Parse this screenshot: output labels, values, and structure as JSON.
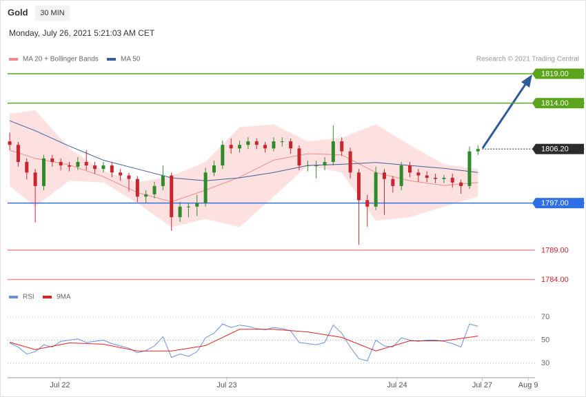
{
  "chart_data": {
    "type": "candlestick",
    "title": "Gold",
    "timeframe": "30 MIN",
    "subtitle": "Monday, July 26, 2021 5:21:03 AM CET",
    "credit": "Research © 2021 Trading Central",
    "xlim": [
      -0.25,
      61.8
    ],
    "xticks": [
      {
        "value": 5.9,
        "label": "Jul 22"
      },
      {
        "value": 25.5,
        "label": "Jul 23"
      },
      {
        "value": 45.5,
        "label": "Jul 24"
      },
      {
        "value": 55.5,
        "label": "Jul 27"
      },
      {
        "value": 60.9,
        "label": "Aug 9"
      }
    ],
    "ylim": [
      1782,
      1820.5
    ],
    "up_color": "#2f8a2a",
    "down_color": "#c8262c",
    "candles": {
      "open": [
        1807.5,
        1806.9,
        1804.0,
        1802.2,
        1799.9,
        1804.6,
        1804.0,
        1803.4,
        1803.2,
        1804.0,
        1803.4,
        1802.8,
        1803.4,
        1802.2,
        1801.7,
        1801.1,
        1798.1,
        1798.5,
        1799.9,
        1801.7,
        1794.6,
        1796.4,
        1796.4,
        1797.0,
        1802.2,
        1803.4,
        1806.9,
        1806.3,
        1806.9,
        1807.5,
        1806.9,
        1806.3,
        1807.5,
        1807.5,
        1806.3,
        1803.4,
        1803.4,
        1803.4,
        1804.0,
        1807.5,
        1805.8,
        1802.2,
        1797.5,
        1796.4,
        1802.2,
        1801.1,
        1799.9,
        1803.4,
        1802.2,
        1801.7,
        1801.3,
        1801.1,
        1801.3,
        1800.5,
        1799.9,
        1805.8
      ],
      "high": [
        1809.0,
        1807.4,
        1804.6,
        1802.8,
        1805.2,
        1805.2,
        1804.6,
        1804.0,
        1804.8,
        1806.0,
        1804.0,
        1804.0,
        1804.0,
        1802.8,
        1802.2,
        1801.6,
        1799.2,
        1800.6,
        1803.4,
        1802.2,
        1797.2,
        1797.0,
        1798.4,
        1803.0,
        1804.2,
        1807.6,
        1808.0,
        1807.6,
        1808.2,
        1808.0,
        1807.4,
        1808.2,
        1808.2,
        1808.0,
        1806.8,
        1804.2,
        1804.2,
        1804.8,
        1810.2,
        1808.2,
        1806.4,
        1802.8,
        1798.4,
        1803.2,
        1802.8,
        1801.6,
        1804.0,
        1804.0,
        1802.8,
        1802.4,
        1802.0,
        1801.8,
        1802.0,
        1801.0,
        1806.6,
        1806.8
      ],
      "low": [
        1806.0,
        1803.2,
        1801.0,
        1793.7,
        1799.2,
        1803.2,
        1802.6,
        1802.4,
        1802.6,
        1802.6,
        1802.0,
        1802.2,
        1801.4,
        1800.8,
        1799.0,
        1797.2,
        1797.0,
        1797.8,
        1799.2,
        1792.3,
        1793.8,
        1794.6,
        1794.8,
        1796.4,
        1801.6,
        1802.8,
        1805.4,
        1805.6,
        1806.2,
        1806.2,
        1805.6,
        1805.8,
        1806.6,
        1805.4,
        1802.6,
        1802.4,
        1801.2,
        1802.6,
        1803.4,
        1805.0,
        1801.2,
        1789.9,
        1793.0,
        1795.8,
        1795.0,
        1798.8,
        1799.2,
        1801.4,
        1800.6,
        1800.6,
        1800.4,
        1800.4,
        1799.6,
        1798.6,
        1799.4,
        1805.2
      ],
      "close": [
        1806.9,
        1804.0,
        1802.2,
        1799.9,
        1804.6,
        1804.0,
        1803.4,
        1803.2,
        1804.0,
        1803.4,
        1802.8,
        1803.4,
        1802.2,
        1801.7,
        1801.1,
        1798.1,
        1798.5,
        1799.9,
        1801.7,
        1794.6,
        1796.4,
        1796.4,
        1797.0,
        1802.2,
        1803.4,
        1806.9,
        1806.3,
        1806.9,
        1807.5,
        1806.9,
        1806.3,
        1807.5,
        1807.5,
        1806.3,
        1803.4,
        1803.4,
        1803.4,
        1804.0,
        1807.5,
        1805.8,
        1802.2,
        1797.5,
        1796.4,
        1802.2,
        1801.1,
        1799.9,
        1803.4,
        1802.2,
        1801.7,
        1801.3,
        1801.1,
        1801.3,
        1800.5,
        1799.9,
        1805.8,
        1806.2
      ]
    },
    "indicators": {
      "x": [
        0,
        3,
        7,
        11,
        15,
        19,
        23,
        27,
        31,
        35,
        39,
        43,
        47,
        51,
        55
      ],
      "series": [
        {
          "name": "MA 20 + Bollinger Bands",
          "color": "#f28b86",
          "band_color": "#fde1e1",
          "values": [
            1806.0,
            1804.6,
            1803.5,
            1801.5,
            1798.8,
            1797.2,
            1799.2,
            1801.4,
            1804.3,
            1805.4,
            1805.2,
            1802.2,
            1800.8,
            1800.0,
            1800.5
          ],
          "upper": [
            1812.2,
            1812.8,
            1806.3,
            1802.5,
            1800.5,
            1801.6,
            1804.0,
            1809.9,
            1810.4,
            1807.5,
            1808.1,
            1810.4,
            1806.9,
            1803.6,
            1802.8
          ],
          "lower": [
            1799.9,
            1796.4,
            1800.8,
            1800.5,
            1797.0,
            1792.9,
            1794.3,
            1792.9,
            1798.1,
            1803.4,
            1802.2,
            1794.0,
            1794.6,
            1796.4,
            1798.1
          ]
        },
        {
          "name": "MA 50",
          "color": "#3b5e9c",
          "values": [
            1811.0,
            1809.3,
            1806.7,
            1804.3,
            1802.8,
            1801.3,
            1800.8,
            1801.3,
            1802.2,
            1803.4,
            1803.6,
            1803.9,
            1803.4,
            1802.9,
            1802.2
          ]
        }
      ]
    },
    "levels": [
      {
        "value": 1819,
        "label": "1819.00",
        "color": "#5aa51b",
        "style": "tag",
        "line": "solid"
      },
      {
        "value": 1814,
        "label": "1814.00",
        "color": "#5aa51b",
        "style": "tag",
        "line": "solid"
      },
      {
        "value": 1806.2,
        "label": "1806.20",
        "color": "#2b2b2b",
        "style": "tag",
        "line": "dotted"
      },
      {
        "value": 1797,
        "label": "1797.00",
        "color": "#2f6fe6",
        "style": "tag",
        "line": "solid"
      },
      {
        "value": 1789,
        "label": "1789.00",
        "color": "#d8202a",
        "style": "text",
        "line": "solid"
      },
      {
        "value": 1784,
        "label": "1784.00",
        "color": "#d8202a",
        "style": "text",
        "line": "solid"
      }
    ],
    "rsi": {
      "ylim": [
        20,
        80
      ],
      "yticks": [
        30,
        50,
        70
      ],
      "series": [
        {
          "name": "RSI",
          "color": "#6b8fe0",
          "values": [
            47.6,
            44,
            38,
            40,
            46,
            44,
            49,
            50,
            51,
            48,
            49,
            50,
            47,
            45,
            43,
            39,
            41,
            45,
            53,
            35,
            38,
            36,
            40,
            52,
            56,
            64,
            61,
            63,
            62,
            60,
            59,
            61,
            60,
            58,
            48,
            47,
            46,
            48,
            63,
            56,
            44,
            34,
            32,
            50,
            45,
            44,
            52,
            50,
            49,
            50,
            50,
            49,
            47,
            44,
            64,
            62
          ]
        },
        {
          "name": "9MA",
          "color": "#e02020",
          "x": [
            0,
            3,
            7,
            11,
            15,
            19,
            23,
            27,
            31,
            35,
            39,
            43,
            47,
            51,
            55
          ],
          "values": [
            48.2,
            41.8,
            47.6,
            46.5,
            40.6,
            40.6,
            45.3,
            59.4,
            59.4,
            57.1,
            52.4,
            40.6,
            49.4,
            49.4,
            53.5
          ]
        }
      ]
    }
  }
}
